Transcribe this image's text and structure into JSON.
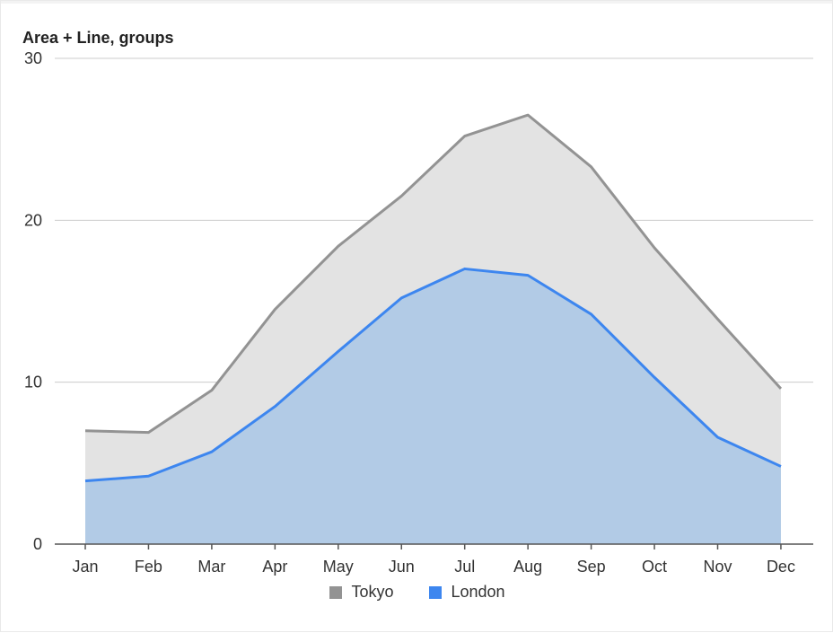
{
  "chart_data": {
    "type": "area",
    "title": "Area + Line, groups",
    "categories": [
      "Jan",
      "Feb",
      "Mar",
      "Apr",
      "May",
      "Jun",
      "Jul",
      "Aug",
      "Sep",
      "Oct",
      "Nov",
      "Dec"
    ],
    "series": [
      {
        "name": "Tokyo",
        "values": [
          7.0,
          6.9,
          9.5,
          14.5,
          18.4,
          21.5,
          25.2,
          26.5,
          23.3,
          18.3,
          13.9,
          9.6
        ],
        "color": "#939393",
        "fill": "#e3e3e3"
      },
      {
        "name": "London",
        "values": [
          3.9,
          4.2,
          5.7,
          8.5,
          11.9,
          15.2,
          17.0,
          16.6,
          14.2,
          10.3,
          6.6,
          4.8
        ],
        "color": "#3d86ef",
        "fill": "#afc9e6"
      }
    ],
    "yticks": [
      0,
      10,
      20,
      30
    ],
    "ylim": [
      0,
      30
    ],
    "grid": true,
    "legend_position": "bottom"
  }
}
